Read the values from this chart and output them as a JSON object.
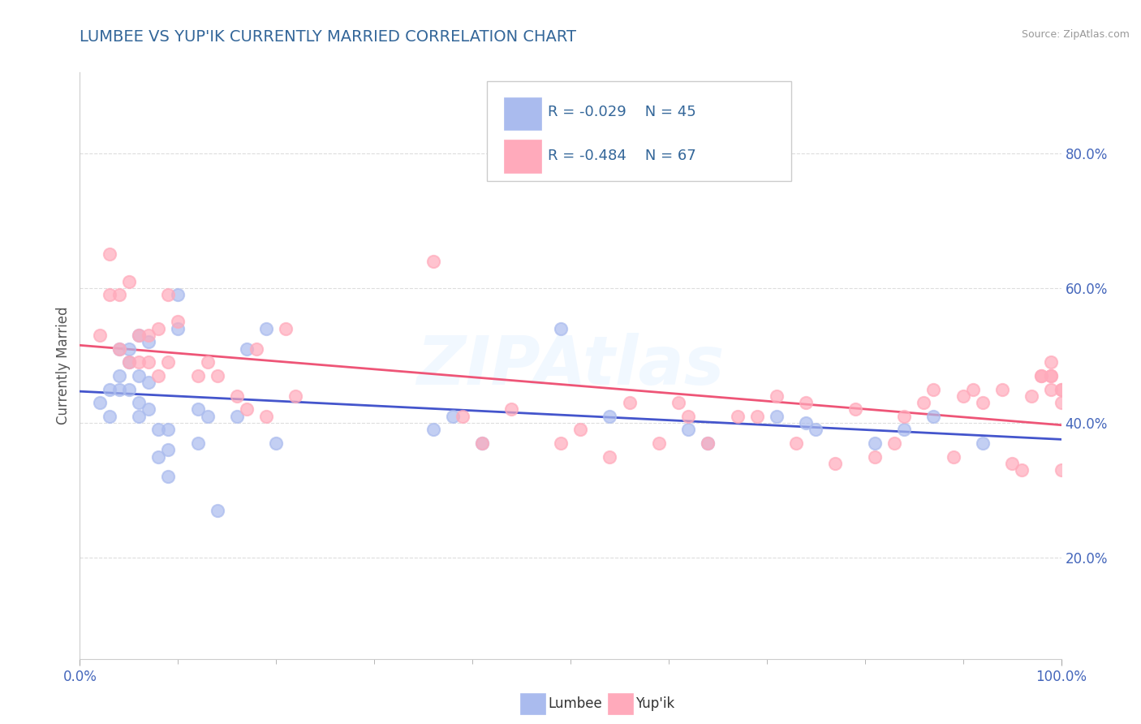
{
  "title": "LUMBEE VS YUP'IK CURRENTLY MARRIED CORRELATION CHART",
  "source_text": "Source: ZipAtlas.com",
  "ylabel": "Currently Married",
  "xlim": [
    0.0,
    1.0
  ],
  "ylim": [
    0.05,
    0.92
  ],
  "yticks": [
    0.2,
    0.4,
    0.6,
    0.8
  ],
  "ytick_labels": [
    "20.0%",
    "40.0%",
    "60.0%",
    "80.0%"
  ],
  "lumbee_color": "#AABBEE",
  "yupik_color": "#FFAABB",
  "lumbee_line_color": "#4455CC",
  "yupik_line_color": "#EE5577",
  "background_color": "#FFFFFF",
  "grid_color": "#DDDDDD",
  "watermark_text": "ZIPAtlas",
  "lumbee_x": [
    0.02,
    0.03,
    0.03,
    0.04,
    0.04,
    0.04,
    0.05,
    0.05,
    0.05,
    0.06,
    0.06,
    0.06,
    0.06,
    0.07,
    0.07,
    0.07,
    0.08,
    0.08,
    0.09,
    0.09,
    0.09,
    0.1,
    0.1,
    0.12,
    0.12,
    0.13,
    0.14,
    0.16,
    0.17,
    0.19,
    0.2,
    0.36,
    0.38,
    0.41,
    0.49,
    0.54,
    0.62,
    0.64,
    0.71,
    0.74,
    0.75,
    0.81,
    0.84,
    0.87,
    0.92
  ],
  "lumbee_y": [
    0.43,
    0.41,
    0.45,
    0.47,
    0.45,
    0.51,
    0.49,
    0.45,
    0.51,
    0.41,
    0.43,
    0.47,
    0.53,
    0.42,
    0.46,
    0.52,
    0.35,
    0.39,
    0.32,
    0.36,
    0.39,
    0.54,
    0.59,
    0.42,
    0.37,
    0.41,
    0.27,
    0.41,
    0.51,
    0.54,
    0.37,
    0.39,
    0.41,
    0.37,
    0.54,
    0.41,
    0.39,
    0.37,
    0.41,
    0.4,
    0.39,
    0.37,
    0.39,
    0.41,
    0.37
  ],
  "yupik_x": [
    0.02,
    0.03,
    0.03,
    0.04,
    0.04,
    0.05,
    0.05,
    0.06,
    0.06,
    0.07,
    0.07,
    0.08,
    0.08,
    0.09,
    0.09,
    0.1,
    0.12,
    0.13,
    0.14,
    0.16,
    0.17,
    0.18,
    0.19,
    0.21,
    0.22,
    0.36,
    0.39,
    0.41,
    0.44,
    0.49,
    0.51,
    0.54,
    0.56,
    0.59,
    0.61,
    0.62,
    0.64,
    0.67,
    0.69,
    0.71,
    0.73,
    0.74,
    0.77,
    0.79,
    0.81,
    0.83,
    0.84,
    0.86,
    0.87,
    0.89,
    0.9,
    0.91,
    0.92,
    0.94,
    0.95,
    0.96,
    0.97,
    0.98,
    0.98,
    0.99,
    0.99,
    0.99,
    0.99,
    1.0,
    1.0,
    1.0,
    1.0
  ],
  "yupik_y": [
    0.53,
    0.65,
    0.59,
    0.51,
    0.59,
    0.49,
    0.61,
    0.49,
    0.53,
    0.49,
    0.53,
    0.47,
    0.54,
    0.59,
    0.49,
    0.55,
    0.47,
    0.49,
    0.47,
    0.44,
    0.42,
    0.51,
    0.41,
    0.54,
    0.44,
    0.64,
    0.41,
    0.37,
    0.42,
    0.37,
    0.39,
    0.35,
    0.43,
    0.37,
    0.43,
    0.41,
    0.37,
    0.41,
    0.41,
    0.44,
    0.37,
    0.43,
    0.34,
    0.42,
    0.35,
    0.37,
    0.41,
    0.43,
    0.45,
    0.35,
    0.44,
    0.45,
    0.43,
    0.45,
    0.34,
    0.33,
    0.44,
    0.47,
    0.47,
    0.45,
    0.47,
    0.47,
    0.49,
    0.45,
    0.43,
    0.45,
    0.33
  ]
}
